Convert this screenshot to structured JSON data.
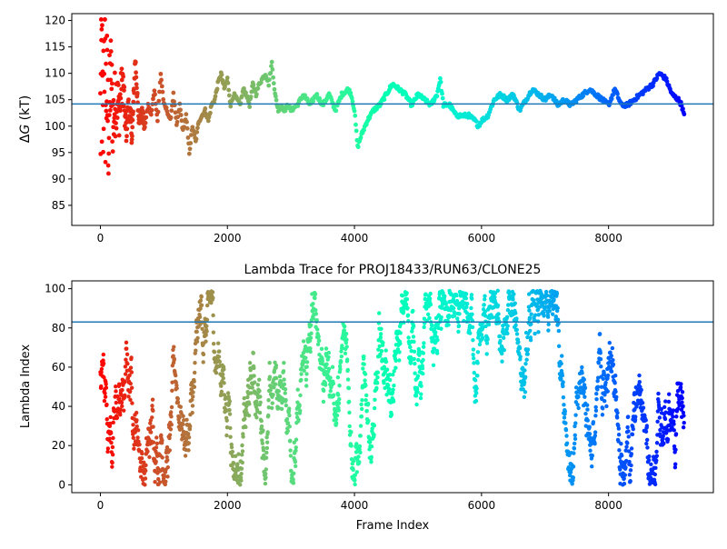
{
  "chart_data": [
    {
      "type": "scatter",
      "title": "",
      "xlabel": "",
      "ylabel": "ΔG (kT)",
      "ylabel_prefix": "Δ",
      "ylabel_var": "G",
      "ylabel_unit": " (kT)",
      "xlim": [
        -450,
        9650
      ],
      "ylim": [
        81.2,
        121.3
      ],
      "xticks": [
        0,
        2000,
        4000,
        6000,
        8000
      ],
      "xtick_labels": [
        "0",
        "2000",
        "4000",
        "6000",
        "8000"
      ],
      "yticks": [
        85,
        90,
        95,
        100,
        105,
        110,
        115,
        120
      ],
      "ytick_labels": [
        "85",
        "90",
        "95",
        "100",
        "105",
        "110",
        "115",
        "120"
      ],
      "grid": false,
      "colormap": "rainbow (red at frame 0 to violet at last frame)",
      "reference_line": {
        "y": 104.2,
        "color": "#1f77b4"
      },
      "series": [
        {
          "values_desc": "DeltaG trajectory per frame (approximate keypoints)",
          "x": [
            0,
            20,
            40,
            60,
            80,
            100,
            130,
            160,
            200,
            250,
            300,
            350,
            400,
            450,
            500,
            550,
            600,
            650,
            700,
            750,
            800,
            850,
            900,
            950,
            1000,
            1050,
            1100,
            1150,
            1200,
            1250,
            1300,
            1350,
            1400,
            1450,
            1500,
            1550,
            1600,
            1650,
            1700,
            1750,
            1800,
            1850,
            1900,
            1950,
            2000,
            2050,
            2100,
            2150,
            2200,
            2250,
            2300,
            2350,
            2400,
            2450,
            2500,
            2550,
            2600,
            2650,
            2700,
            2750,
            2800,
            2850,
            2900,
            2950,
            3000,
            3100,
            3200,
            3300,
            3400,
            3500,
            3600,
            3700,
            3800,
            3900,
            3950,
            4000,
            4050,
            4100,
            4200,
            4300,
            4400,
            4500,
            4600,
            4700,
            4800,
            4900,
            5000,
            5100,
            5200,
            5300,
            5350,
            5400,
            5500,
            5600,
            5700,
            5800,
            5900,
            5950,
            6000,
            6100,
            6200,
            6300,
            6400,
            6500,
            6600,
            6700,
            6800,
            6900,
            7000,
            7100,
            7200,
            7300,
            7400,
            7500,
            7600,
            7700,
            7800,
            7900,
            8000,
            8100,
            8200,
            8300,
            8400,
            8500,
            8600,
            8700,
            8800,
            8900,
            9000,
            9100,
            9150,
            9190
          ],
          "y": [
            100,
            112,
            96,
            118,
            104,
            108,
            98,
            110,
            101,
            106,
            103,
            109,
            99,
            104,
            98,
            113,
            101,
            103,
            100,
            104,
            102,
            107,
            101,
            110,
            104,
            103,
            101,
            106,
            100,
            104,
            99,
            102,
            95,
            100,
            97,
            101,
            102,
            103,
            101,
            104,
            105,
            108,
            110,
            107,
            109,
            104,
            106,
            105,
            104,
            107,
            106,
            104,
            108,
            106,
            108,
            109,
            110,
            108,
            112,
            106,
            103,
            104,
            103,
            104,
            103,
            104,
            106,
            104,
            106,
            104,
            106,
            103,
            106,
            107,
            106,
            103,
            96,
            98,
            101,
            103,
            104,
            106,
            108,
            107,
            106,
            104,
            106,
            105,
            104,
            106,
            109,
            104,
            104,
            102,
            102,
            102,
            101,
            100,
            101,
            102,
            105,
            106,
            105,
            106,
            103,
            105,
            107,
            106,
            105,
            106,
            104,
            105,
            104,
            105,
            106,
            107,
            106,
            105,
            104,
            107,
            104,
            104,
            105,
            106,
            107,
            108,
            110,
            109,
            106,
            105,
            104,
            102
          ]
        }
      ]
    },
    {
      "type": "scatter",
      "title": "Lambda Trace for PROJ18433/RUN63/CLONE25",
      "xlabel": "Frame Index",
      "ylabel": "Lambda Index",
      "xlim": [
        -450,
        9650
      ],
      "ylim": [
        -4,
        104
      ],
      "xticks": [
        0,
        2000,
        4000,
        6000,
        8000
      ],
      "xtick_labels": [
        "0",
        "2000",
        "4000",
        "6000",
        "8000"
      ],
      "yticks": [
        0,
        20,
        40,
        60,
        80,
        100
      ],
      "ytick_labels": [
        "0",
        "20",
        "40",
        "60",
        "80",
        "100"
      ],
      "grid": false,
      "colormap": "rainbow (red at frame 0 to violet at last frame)",
      "reference_line": {
        "y": 83,
        "color": "#1f77b4"
      },
      "series": [
        {
          "values_desc": "Lambda index per frame, random walk between 0 and 99 over frames 0 to ~9190",
          "frame_range": [
            0,
            9190
          ],
          "lambda_range": [
            0,
            99
          ]
        }
      ]
    }
  ]
}
